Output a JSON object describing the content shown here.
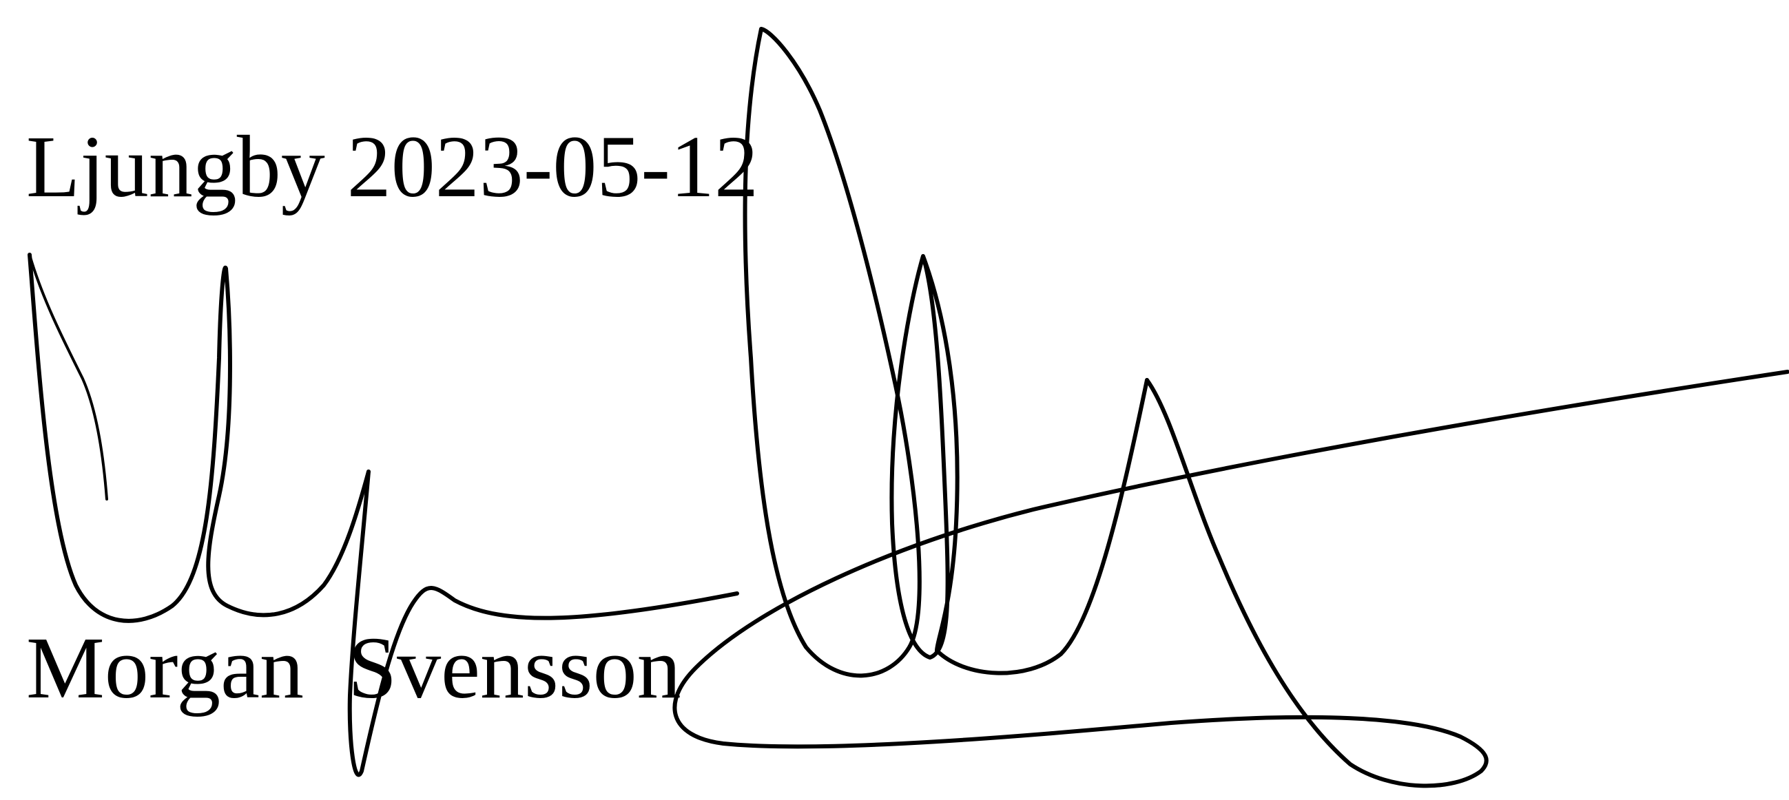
{
  "document": {
    "place_date": "Ljungby 2023-05-12",
    "signer_name": "Morgan  Svensson",
    "signature_lettering": "Handwritten signature",
    "ink_color": "#000000",
    "paper_color": "#ffffff"
  }
}
